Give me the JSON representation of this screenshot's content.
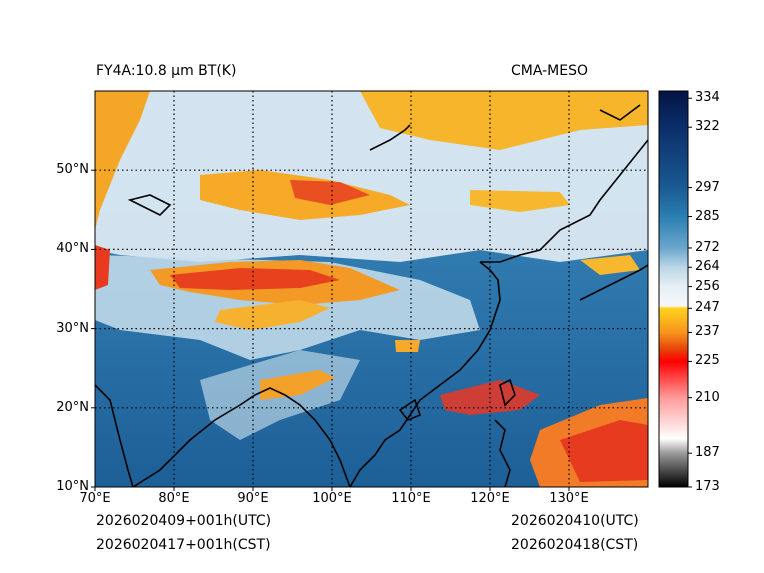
{
  "header": {
    "left_title": "FY4A:10.8 µm BT(K)",
    "right_title": "CMA-MESO"
  },
  "footer": {
    "init_utc": "2026020409+001h(UTC)",
    "init_cst": "2026020417+001h(CST)",
    "valid_utc": "2026020410(UTC)",
    "valid_cst": "2026020418(CST)"
  },
  "map": {
    "lon_range": [
      70,
      140
    ],
    "lat_range": [
      10,
      60
    ],
    "lon_ticks": [
      {
        "value": 70,
        "label": "70°E"
      },
      {
        "value": 80,
        "label": "80°E"
      },
      {
        "value": 90,
        "label": "90°E"
      },
      {
        "value": 100,
        "label": "100°E"
      },
      {
        "value": 110,
        "label": "110°E"
      },
      {
        "value": 120,
        "label": "120°E"
      },
      {
        "value": 130,
        "label": "130°E"
      }
    ],
    "lat_ticks": [
      {
        "value": 10,
        "label": "10°N"
      },
      {
        "value": 20,
        "label": "20°N"
      },
      {
        "value": 30,
        "label": "30°N"
      },
      {
        "value": 40,
        "label": "40°N"
      },
      {
        "value": 50,
        "label": "50°N"
      }
    ],
    "colors": {
      "clear_sky": "#2f7fb3",
      "low_cloud": "#d8e8f2",
      "mid_cloud": "#f2b021",
      "high_cloud": "#e9341e",
      "coastline": "#000000",
      "grid": "#000000"
    }
  },
  "colorbar": {
    "min": 173,
    "max": 337,
    "ticks": [
      {
        "value": 334,
        "label": "334"
      },
      {
        "value": 322,
        "label": "322"
      },
      {
        "value": 297,
        "label": "297"
      },
      {
        "value": 285,
        "label": "285"
      },
      {
        "value": 272,
        "label": "272"
      },
      {
        "value": 264,
        "label": "264"
      },
      {
        "value": 256,
        "label": "256"
      },
      {
        "value": 247,
        "label": "247"
      },
      {
        "value": 237,
        "label": "237"
      },
      {
        "value": 225,
        "label": "225"
      },
      {
        "value": 210,
        "label": "210"
      },
      {
        "value": 187,
        "label": "187"
      },
      {
        "value": 173,
        "label": "173"
      }
    ],
    "stops": [
      {
        "value": 173,
        "color": "#000000"
      },
      {
        "value": 187,
        "color": "#9a9a9a"
      },
      {
        "value": 193,
        "color": "#ffffff"
      },
      {
        "value": 210,
        "color": "#ff9a9a"
      },
      {
        "value": 225,
        "color": "#ff0000"
      },
      {
        "value": 230,
        "color": "#e8430a"
      },
      {
        "value": 237,
        "color": "#f7941d"
      },
      {
        "value": 247,
        "color": "#ffd21f"
      },
      {
        "value": 248,
        "color": "#f6f8fb"
      },
      {
        "value": 256,
        "color": "#e6eff5"
      },
      {
        "value": 264,
        "color": "#bcd6e6"
      },
      {
        "value": 272,
        "color": "#6aa6cc"
      },
      {
        "value": 285,
        "color": "#2a7fb2"
      },
      {
        "value": 297,
        "color": "#1b5a93"
      },
      {
        "value": 322,
        "color": "#0b2e6a"
      },
      {
        "value": 337,
        "color": "#041445"
      }
    ]
  }
}
